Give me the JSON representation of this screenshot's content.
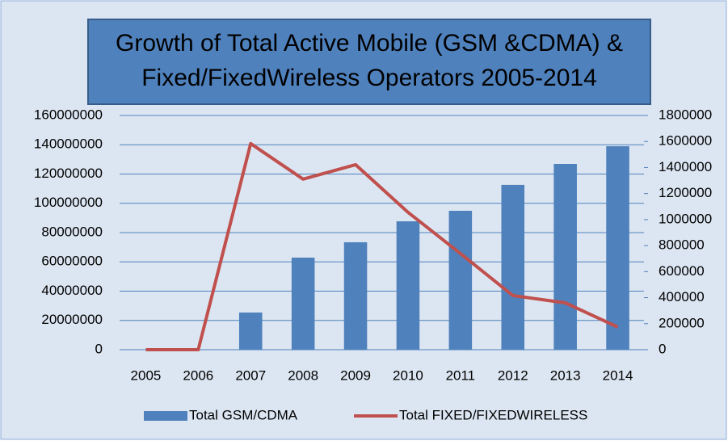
{
  "chart_data": {
    "type": "bar_line",
    "title": [
      "Growth of Total Active Mobile (GSM &CDMA) &",
      "Fixed/FixedWireless Operators 2005-2014"
    ],
    "categories": [
      "2005",
      "2006",
      "2007",
      "2008",
      "2009",
      "2010",
      "2011",
      "2012",
      "2013",
      "2014"
    ],
    "series": [
      {
        "name": "Total GSM/CDMA",
        "type": "bar",
        "color": "#4f81bd",
        "values": [
          0,
          0,
          25400000,
          62900000,
          73400000,
          87700000,
          94900000,
          112600000,
          126900000,
          139000000
        ]
      },
      {
        "name": "Total FIXED/FIXEDWIRELESS",
        "type": "line",
        "axis": "y2",
        "color": "#c0504d",
        "values": [
          0,
          0,
          1584000,
          1311000,
          1422000,
          1056000,
          739000,
          416000,
          360000,
          174000
        ]
      }
    ],
    "ylim": [
      0,
      160000000
    ],
    "yticks": [
      0,
      20000000,
      40000000,
      60000000,
      80000000,
      100000000,
      120000000,
      140000000,
      160000000
    ],
    "y2lim": [
      0,
      1800000
    ],
    "y2ticks": [
      0,
      200000,
      400000,
      600000,
      800000,
      1000000,
      1200000,
      1400000,
      1600000,
      1800000
    ],
    "grid": true,
    "legend": "bottom"
  }
}
